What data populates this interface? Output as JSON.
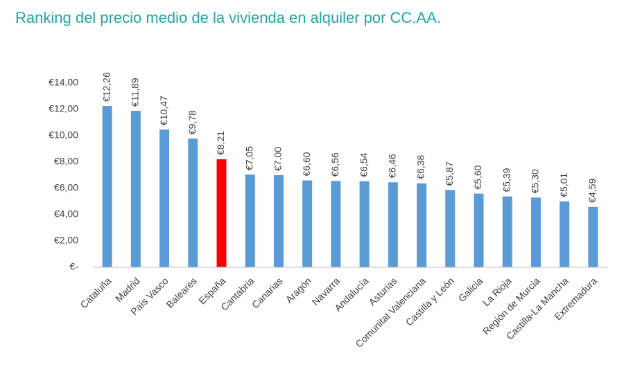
{
  "chart_data": {
    "type": "bar",
    "title": "Ranking del precio medio de la vivienda en alquiler por CC.AA.",
    "categories": [
      "Cataluña",
      "Madrid",
      "País Vasco",
      "Baleares",
      "España",
      "Cantabria",
      "Canarias",
      "Aragón",
      "Navarra",
      "Andalucía",
      "Asturias",
      "Comunitat Valenciana",
      "Castilla y León",
      "Galicia",
      "La Rioja",
      "Región de Murcia",
      "Castilla-La Mancha",
      "Extremadura"
    ],
    "values": [
      12.26,
      11.89,
      10.47,
      9.78,
      8.21,
      7.05,
      7.0,
      6.6,
      6.56,
      6.54,
      6.46,
      6.38,
      5.87,
      5.6,
      5.39,
      5.3,
      5.01,
      4.59
    ],
    "value_labels": [
      "€12,26",
      "€11,89",
      "€10,47",
      "€9,78",
      "€8,21",
      "€7,05",
      "€7,00",
      "€6,60",
      "€6,56",
      "€6,54",
      "€6,46",
      "€6,38",
      "€5,87",
      "€5,60",
      "€5,39",
      "€5,30",
      "€5,01",
      "€4,59"
    ],
    "colors": [
      "#5b9bd5",
      "#5b9bd5",
      "#5b9bd5",
      "#5b9bd5",
      "#ff0000",
      "#5b9bd5",
      "#5b9bd5",
      "#5b9bd5",
      "#5b9bd5",
      "#5b9bd5",
      "#5b9bd5",
      "#5b9bd5",
      "#5b9bd5",
      "#5b9bd5",
      "#5b9bd5",
      "#5b9bd5",
      "#5b9bd5",
      "#5b9bd5"
    ],
    "ylim": [
      0,
      14
    ],
    "yticks": [
      {
        "value": 0,
        "label": "€-"
      },
      {
        "value": 2,
        "label": "€2,00"
      },
      {
        "value": 4,
        "label": "€4,00"
      },
      {
        "value": 6,
        "label": "€6,00"
      },
      {
        "value": 8,
        "label": "€8,00"
      },
      {
        "value": 10,
        "label": "€10,00"
      },
      {
        "value": 12,
        "label": "€12,00"
      },
      {
        "value": 14,
        "label": "€14,00"
      }
    ],
    "grid": false
  }
}
